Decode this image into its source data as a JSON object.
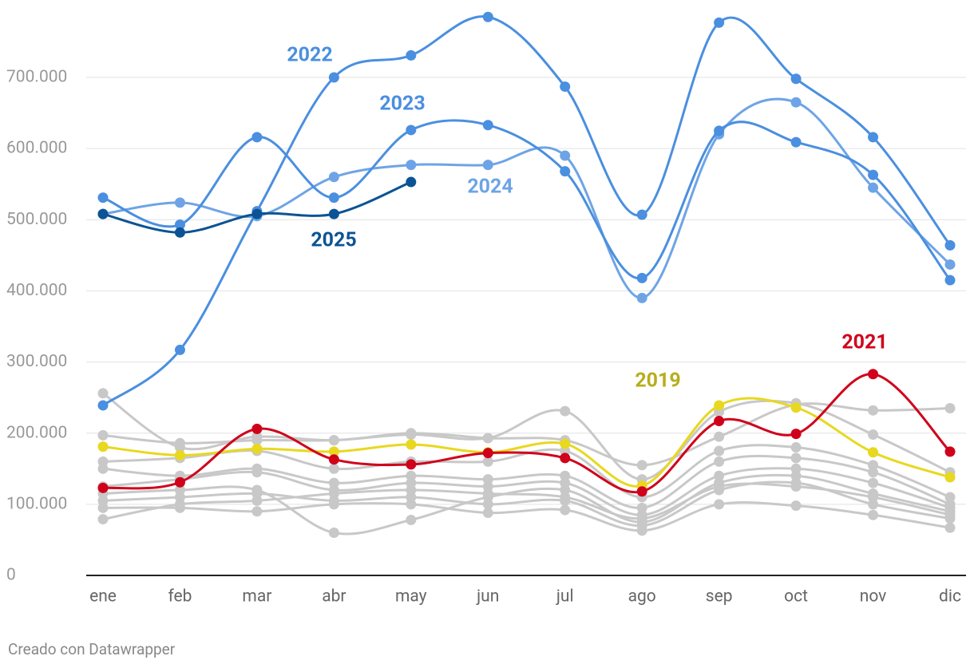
{
  "chart_data": {
    "type": "line",
    "categories": [
      "ene",
      "feb",
      "mar",
      "abr",
      "may",
      "jun",
      "jul",
      "ago",
      "sep",
      "oct",
      "nov",
      "dic"
    ],
    "ylim": [
      0,
      800000
    ],
    "yticks": [
      0,
      {
        "value": 100000,
        "label": "100.000"
      },
      {
        "value": 200000,
        "label": "200.000"
      },
      {
        "value": 300000,
        "label": "300.000"
      },
      {
        "value": 400000,
        "label": "400.000"
      },
      {
        "value": 500000,
        "label": "500.000"
      },
      {
        "value": 600000,
        "label": "600.000"
      },
      {
        "value": 700000,
        "label": "700.000"
      }
    ],
    "grid": true,
    "series": [
      {
        "color": "#c8c8c8",
        "values": [
          256000,
          180000,
          195000,
          190000,
          200000,
          193000,
          190000,
          155000,
          195000,
          240000,
          232000,
          235000
        ]
      },
      {
        "color": "#c8c8c8",
        "values": [
          197000,
          186000,
          190000,
          190000,
          198000,
          193000,
          231000,
          135000,
          230000,
          242000,
          198000,
          145000
        ]
      },
      {
        "color": "#c8c8c8",
        "values": [
          160000,
          165000,
          175000,
          150000,
          160000,
          160000,
          175000,
          110000,
          175000,
          180000,
          155000,
          110000
        ]
      },
      {
        "color": "#c8c8c8",
        "values": [
          150000,
          140000,
          150000,
          130000,
          140000,
          135000,
          140000,
          95000,
          160000,
          165000,
          145000,
          100000
        ]
      },
      {
        "color": "#c8c8c8",
        "values": [
          125000,
          135000,
          145000,
          120000,
          130000,
          125000,
          130000,
          85000,
          140000,
          150000,
          130000,
          95000
        ]
      },
      {
        "color": "#c8c8c8",
        "values": [
          115000,
          120000,
          120000,
          60000,
          78000,
          110000,
          120000,
          75000,
          130000,
          140000,
          115000,
          90000
        ]
      },
      {
        "color": "#c8c8c8",
        "values": [
          105000,
          110000,
          115000,
          105000,
          110000,
          100000,
          105000,
          70000,
          120000,
          130000,
          100000,
          80000
        ]
      },
      {
        "color": "#c8c8c8",
        "values": [
          95000,
          95000,
          90000,
          100000,
          100000,
          88000,
          92000,
          63000,
          100000,
          98000,
          85000,
          67000
        ]
      },
      {
        "color": "#c8c8c8",
        "values": [
          79000,
          100000,
          105000,
          115000,
          120000,
          115000,
          110000,
          80000,
          125000,
          125000,
          110000,
          85000
        ]
      },
      {
        "name": "2019",
        "color": "#e8d820",
        "label_color": "#b8ad1c",
        "values": [
          181000,
          169000,
          178000,
          174000,
          184000,
          173000,
          185000,
          126000,
          239000,
          236000,
          173000,
          138000
        ]
      },
      {
        "name": "2021",
        "color": "#d0021b",
        "values": [
          123000,
          131000,
          206000,
          163000,
          156000,
          172000,
          165000,
          118000,
          217000,
          199000,
          283000,
          174000
        ]
      },
      {
        "name": "2024",
        "color": "#6ea4e6",
        "values": [
          508000,
          524000,
          505000,
          560000,
          577000,
          577000,
          590000,
          390000,
          620000,
          665000,
          545000,
          437000
        ]
      },
      {
        "name": "2023",
        "color": "#4a8fe0",
        "values": [
          531000,
          493000,
          616000,
          531000,
          626000,
          633000,
          568000,
          418000,
          625000,
          609000,
          563000,
          415000
        ]
      },
      {
        "name": "2022",
        "color": "#4a8fe0",
        "values": [
          239000,
          317000,
          512000,
          700000,
          731000,
          785000,
          687000,
          507000,
          777000,
          698000,
          616000,
          464000
        ]
      },
      {
        "name": "2025",
        "color": "#0b5394",
        "values": [
          508000,
          482000,
          508000,
          508000,
          553000,
          null,
          null,
          null,
          null,
          null,
          null,
          null
        ]
      }
    ],
    "footer": "Creado con Datawrapper"
  }
}
